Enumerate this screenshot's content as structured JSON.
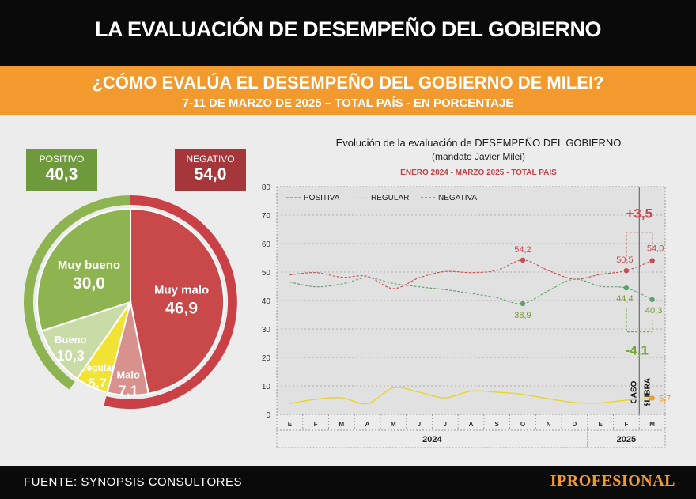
{
  "header": {
    "title": "LA EVALUACIÓN DE DESEMPEÑO DEL GOBIERNO",
    "question": "¿CÓMO EVALÚA EL DESEMPEÑO DEL GOBIERNO DE MILEI?",
    "subtitle": "7-11 DE MARZO DE 2025 – TOTAL PAÍS - EN PORCENTAJE"
  },
  "footer": {
    "source": "FUENTE: SYNOPSIS CONSULTORES",
    "logo": "IPROFESIONAL"
  },
  "colors": {
    "positive": "#7ba33e",
    "negative": "#c23b3b",
    "regular": "#f2e233",
    "orange": "#f39a2f"
  },
  "chart_data": [
    {
      "type": "pie",
      "summary": {
        "positive": {
          "label": "POSITIVO",
          "value": "40,3"
        },
        "negative": {
          "label": "NEGATIVO",
          "value": "54,0"
        }
      },
      "slices": [
        {
          "label": "Muy malo",
          "value": 46.9,
          "display": "46,9",
          "color": "#c9484a"
        },
        {
          "label": "Malo",
          "value": 7.1,
          "display": "7,1",
          "color": "#d8928e"
        },
        {
          "label": "Regular",
          "value": 5.7,
          "display": "5,7",
          "color": "#f2e233"
        },
        {
          "label": "Bueno",
          "value": 10.3,
          "display": "10,3",
          "color": "#c9dba7"
        },
        {
          "label": "Muy bueno",
          "value": 30.0,
          "display": "30,0",
          "color": "#8db451"
        }
      ]
    },
    {
      "type": "line",
      "title": "Evolución de la evaluación de DESEMPEÑO DEL GOBIERNO",
      "subtitle": "(mandato Javier Milei)",
      "period": "ENERO 2024 -  MARZO 2025  -  TOTAL PAÍS",
      "categories": [
        "E",
        "F",
        "M",
        "A",
        "M",
        "J",
        "J",
        "A",
        "S",
        "O",
        "N",
        "D",
        "E",
        "F",
        "M"
      ],
      "years": [
        {
          "label": "2024",
          "from": 0,
          "to": 11
        },
        {
          "label": "2025",
          "from": 12,
          "to": 14
        }
      ],
      "ylim": [
        0,
        80
      ],
      "yticks": [
        0,
        10,
        20,
        30,
        40,
        50,
        60,
        70,
        80
      ],
      "series": [
        {
          "name": "POSITIVA",
          "color": "#5e9f6e",
          "values": [
            46.5,
            44.8,
            45.8,
            48.0,
            46.0,
            44.8,
            43.8,
            42.5,
            41.0,
            38.9,
            43.5,
            47.5,
            45.0,
            44.4,
            40.3
          ]
        },
        {
          "name": "REGULAR",
          "color": "#e6d52a",
          "values": [
            3.8,
            5.3,
            5.8,
            3.8,
            9.3,
            7.8,
            5.8,
            8.2,
            7.8,
            7.0,
            5.5,
            4.2,
            4.0,
            5.0,
            5.7
          ]
        },
        {
          "name": "NEGATIVA",
          "color": "#c84a52",
          "values": [
            49.0,
            49.8,
            48.2,
            48.5,
            44.2,
            48.0,
            50.2,
            49.8,
            50.6,
            54.2,
            50.5,
            47.5,
            49.2,
            50.5,
            54.0
          ]
        }
      ],
      "point_labels": [
        {
          "series": 2,
          "index": 9,
          "text": "54,2"
        },
        {
          "series": 0,
          "index": 9,
          "text": "38,9"
        },
        {
          "series": 2,
          "index": 13,
          "text": "50,5"
        },
        {
          "series": 2,
          "index": 14,
          "text": "54,0"
        },
        {
          "series": 0,
          "index": 13,
          "text": "44,4"
        },
        {
          "series": 0,
          "index": 14,
          "text": "40,3"
        },
        {
          "series": 1,
          "index": 14,
          "text": "5,7"
        }
      ],
      "annotations": {
        "negative_change": "+3,5",
        "positive_change": "-4,1",
        "event": "CASO $LIBRA"
      }
    }
  ]
}
